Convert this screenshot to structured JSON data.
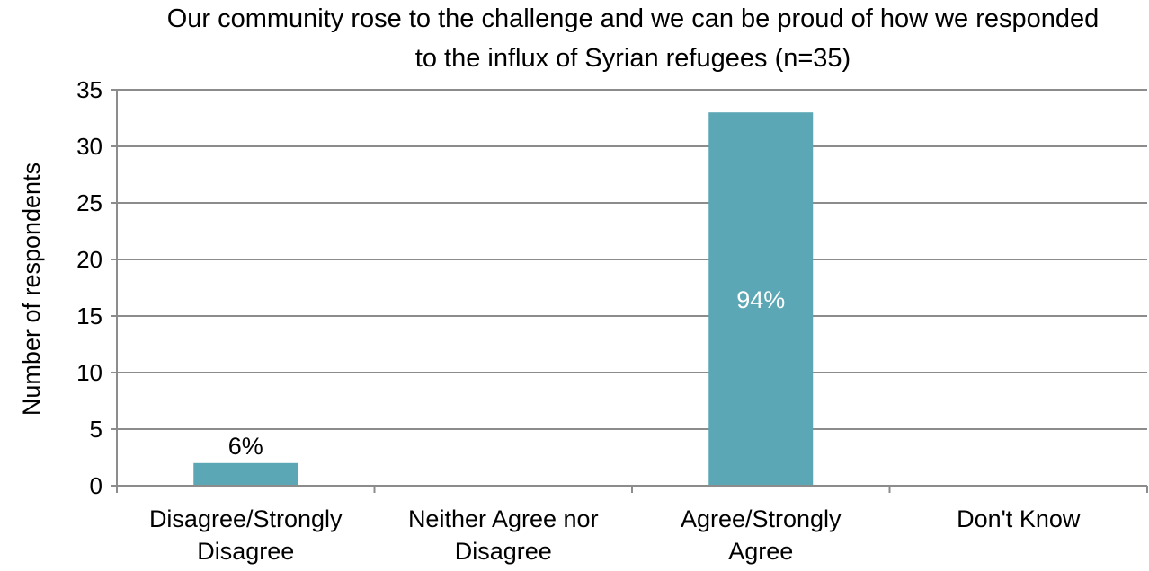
{
  "chart_data": {
    "type": "bar",
    "title_lines": [
      "Our community rose to the challenge and we can be proud of how we responded",
      "to the influx of Syrian refugees (n=35)"
    ],
    "ylabel": "Number of respondents",
    "xlabel": "",
    "ylim": [
      0,
      35
    ],
    "yticks": [
      0,
      5,
      10,
      15,
      20,
      25,
      30,
      35
    ],
    "grid": true,
    "legend": "none",
    "categories": [
      [
        "Disagree/Strongly",
        "Disagree"
      ],
      [
        "Neither Agree nor",
        "Disagree"
      ],
      [
        "Agree/Strongly",
        "Agree"
      ],
      [
        "Don't Know"
      ]
    ],
    "values": [
      2,
      0,
      33,
      0
    ],
    "data_labels": [
      "6%",
      "",
      "94%",
      ""
    ],
    "bar_color": "#5ba7b5",
    "inside_label_color": "#ffffff",
    "outside_label_color": "#000000",
    "grid_color": "#8c8c8c"
  }
}
